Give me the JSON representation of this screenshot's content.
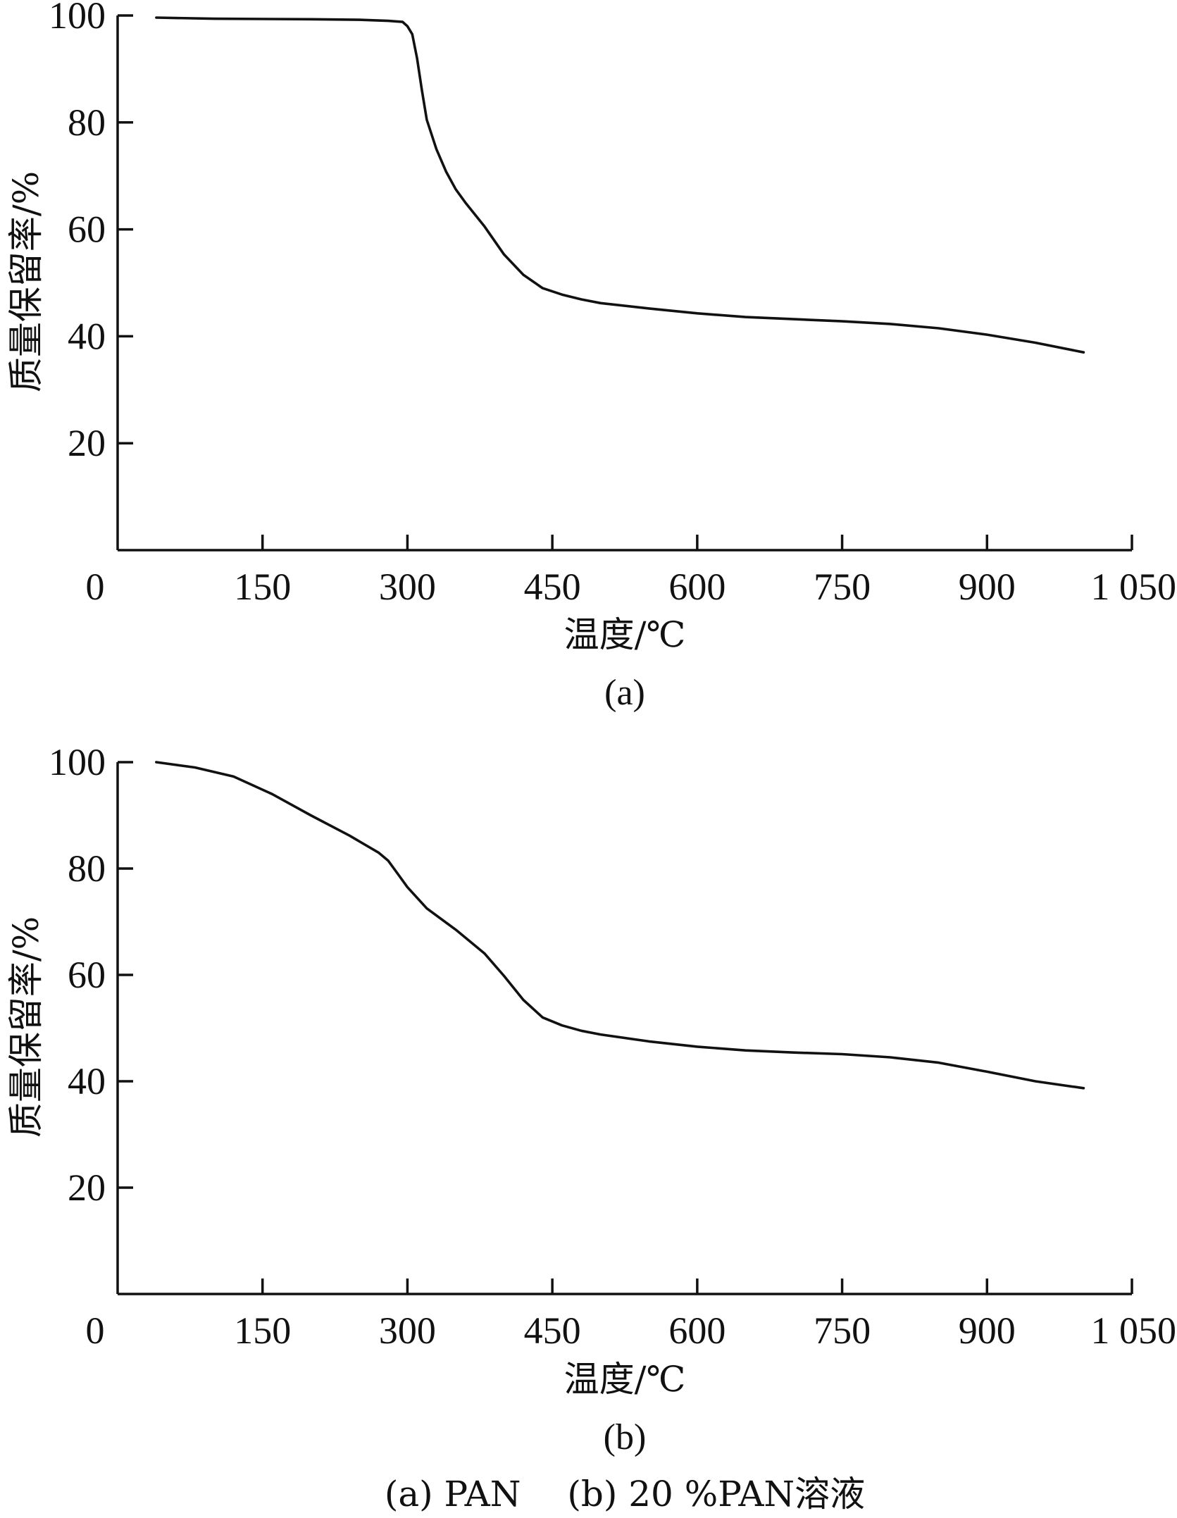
{
  "figure_caption": "(a) PAN  (b) 20 %PAN溶液",
  "chart_data": [
    {
      "type": "line",
      "panel_label": "(a)",
      "xlabel": "温度/℃",
      "ylabel": "质量保留率/%",
      "xlim": [
        0,
        1050
      ],
      "ylim": [
        0,
        100
      ],
      "x_ticks": [
        0,
        150,
        300,
        450,
        600,
        750,
        900,
        1050
      ],
      "x_tick_labels": [
        "0",
        "150",
        "300",
        "450",
        "600",
        "750",
        "900",
        "1 050"
      ],
      "y_ticks": [
        20,
        40,
        60,
        80,
        100
      ],
      "y_tick_labels": [
        "20",
        "40",
        "60",
        "80",
        "100"
      ],
      "series": [
        {
          "x": [
            40,
            100,
            200,
            250,
            280,
            295,
            300,
            305,
            310,
            315,
            320,
            330,
            340,
            350,
            360,
            380,
            400,
            420,
            440,
            460,
            480,
            500,
            550,
            600,
            650,
            700,
            750,
            800,
            850,
            900,
            950,
            1000
          ],
          "y": [
            99.6,
            99.4,
            99.3,
            99.2,
            99.0,
            98.8,
            98.0,
            96.5,
            92.0,
            86.0,
            80.5,
            75.0,
            70.8,
            67.5,
            65.0,
            60.5,
            55.3,
            51.5,
            49.0,
            47.8,
            46.9,
            46.2,
            45.2,
            44.3,
            43.6,
            43.2,
            42.8,
            42.3,
            41.5,
            40.3,
            38.8,
            37.0
          ]
        }
      ]
    },
    {
      "type": "line",
      "panel_label": "(b)",
      "xlabel": "温度/℃",
      "ylabel": "质量保留率/%",
      "xlim": [
        0,
        1050
      ],
      "ylim": [
        0,
        100
      ],
      "x_ticks": [
        0,
        150,
        300,
        450,
        600,
        750,
        900,
        1050
      ],
      "x_tick_labels": [
        "0",
        "150",
        "300",
        "450",
        "600",
        "750",
        "900",
        "1 050"
      ],
      "y_ticks": [
        20,
        40,
        60,
        80,
        100
      ],
      "y_tick_labels": [
        "20",
        "40",
        "60",
        "80",
        "100"
      ],
      "series": [
        {
          "x": [
            40,
            80,
            120,
            160,
            200,
            240,
            270,
            280,
            290,
            300,
            320,
            350,
            380,
            400,
            420,
            440,
            460,
            480,
            500,
            550,
            600,
            650,
            700,
            750,
            800,
            850,
            900,
            950,
            1000
          ],
          "y": [
            100,
            99.0,
            97.3,
            94.0,
            90.0,
            86.2,
            83.0,
            81.5,
            79.0,
            76.5,
            72.5,
            68.5,
            64.0,
            59.8,
            55.3,
            52.0,
            50.5,
            49.5,
            48.8,
            47.5,
            46.5,
            45.8,
            45.4,
            45.1,
            44.5,
            43.5,
            41.8,
            40.0,
            38.7
          ]
        }
      ]
    }
  ]
}
